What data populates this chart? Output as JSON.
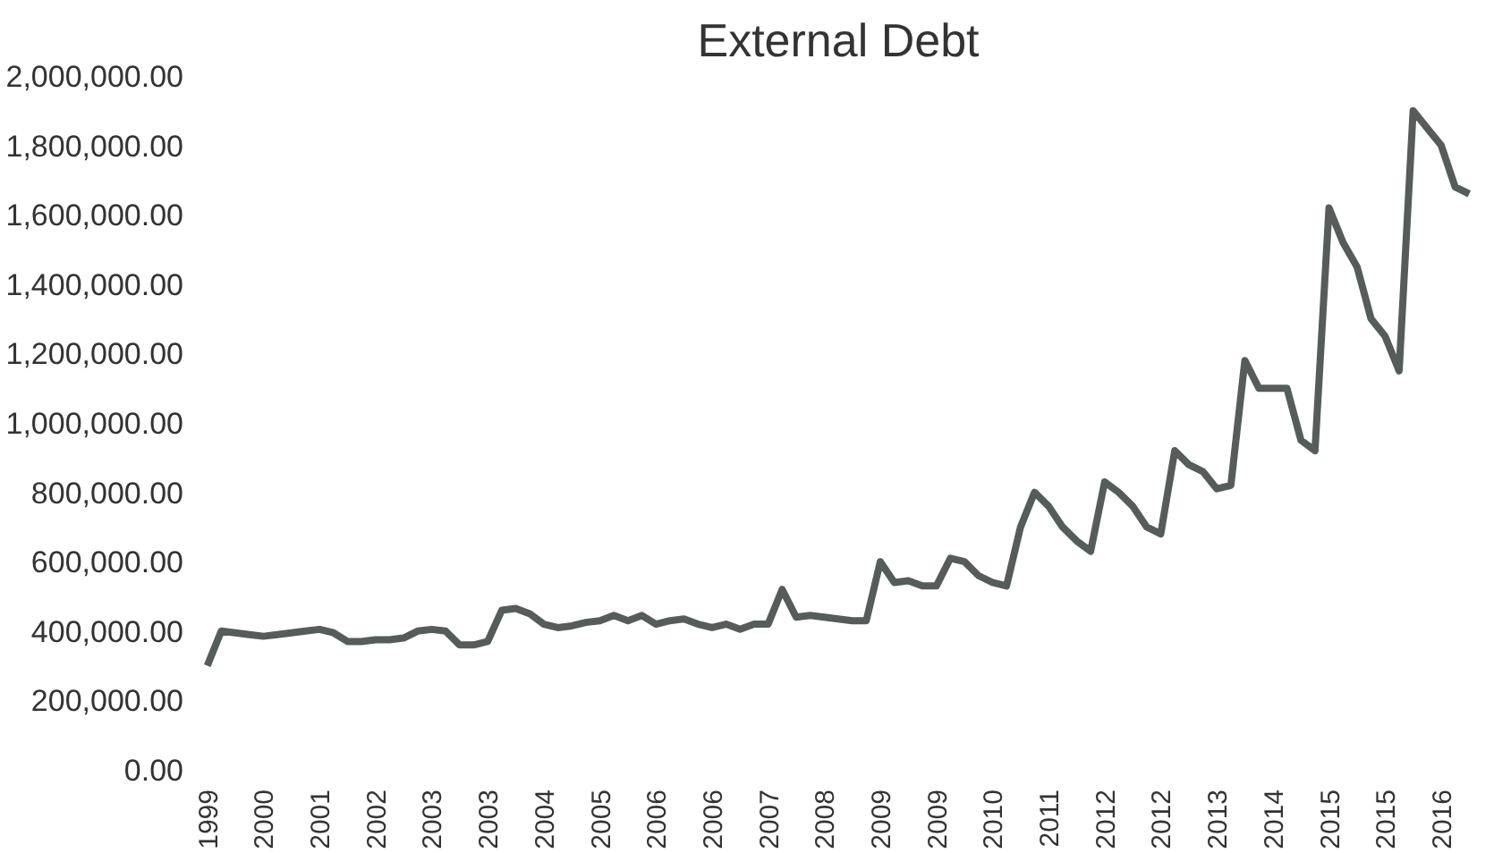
{
  "chart_data": {
    "type": "line",
    "title": "External Debt",
    "categories": [
      "1999",
      null,
      null,
      null,
      "2000",
      null,
      null,
      null,
      "2001",
      null,
      null,
      null,
      "2002",
      null,
      null,
      null,
      "2003",
      null,
      null,
      null,
      "2003",
      null,
      null,
      null,
      "2004",
      null,
      null,
      null,
      "2005",
      null,
      null,
      null,
      "2006",
      null,
      null,
      null,
      "2006",
      null,
      null,
      null,
      "2007",
      null,
      null,
      null,
      "2008",
      null,
      null,
      null,
      "2009",
      null,
      null,
      null,
      "2009",
      null,
      null,
      null,
      "2010",
      null,
      null,
      null,
      "2011",
      null,
      null,
      null,
      "2012",
      null,
      null,
      null,
      "2012",
      null,
      null,
      null,
      "2013",
      null,
      null,
      null,
      "2014",
      null,
      null,
      null,
      "2015",
      null,
      null,
      null,
      "2015",
      null,
      null,
      null,
      "2016",
      null,
      null
    ],
    "series": [
      {
        "color": "#555c5a",
        "values": [
          300000,
          400000,
          395000,
          390000,
          385000,
          390000,
          395000,
          400000,
          405000,
          395000,
          370000,
          370000,
          375000,
          375000,
          380000,
          400000,
          405000,
          400000,
          360000,
          360000,
          370000,
          460000,
          465000,
          450000,
          420000,
          410000,
          415000,
          425000,
          430000,
          445000,
          430000,
          445000,
          420000,
          430000,
          435000,
          420000,
          410000,
          420000,
          405000,
          420000,
          420000,
          520000,
          440000,
          445000,
          440000,
          435000,
          430000,
          430000,
          600000,
          540000,
          545000,
          530000,
          530000,
          610000,
          600000,
          560000,
          540000,
          530000,
          700000,
          800000,
          760000,
          700000,
          660000,
          630000,
          830000,
          800000,
          760000,
          700000,
          680000,
          920000,
          880000,
          860000,
          810000,
          820000,
          1180000,
          1100000,
          1100000,
          1100000,
          950000,
          920000,
          1620000,
          1520000,
          1450000,
          1300000,
          1250000,
          1150000,
          1900000,
          1850000,
          1800000,
          1680000,
          1660000
        ]
      }
    ],
    "ylim": [
      0,
      2000000
    ],
    "yticks": [
      {
        "value": 0,
        "label": "0.00"
      },
      {
        "value": 200000,
        "label": "200,000.00"
      },
      {
        "value": 400000,
        "label": "400,000.00"
      },
      {
        "value": 600000,
        "label": "600,000.00"
      },
      {
        "value": 800000,
        "label": "800,000.00"
      },
      {
        "value": 1000000,
        "label": "1,000,000.00"
      },
      {
        "value": 1200000,
        "label": "1,200,000.00"
      },
      {
        "value": 1400000,
        "label": "1,400,000.00"
      },
      {
        "value": 1600000,
        "label": "1,600,000.00"
      },
      {
        "value": 1800000,
        "label": "1,800,000.00"
      },
      {
        "value": 2000000,
        "label": "2,000,000.00"
      }
    ],
    "grid": false
  }
}
